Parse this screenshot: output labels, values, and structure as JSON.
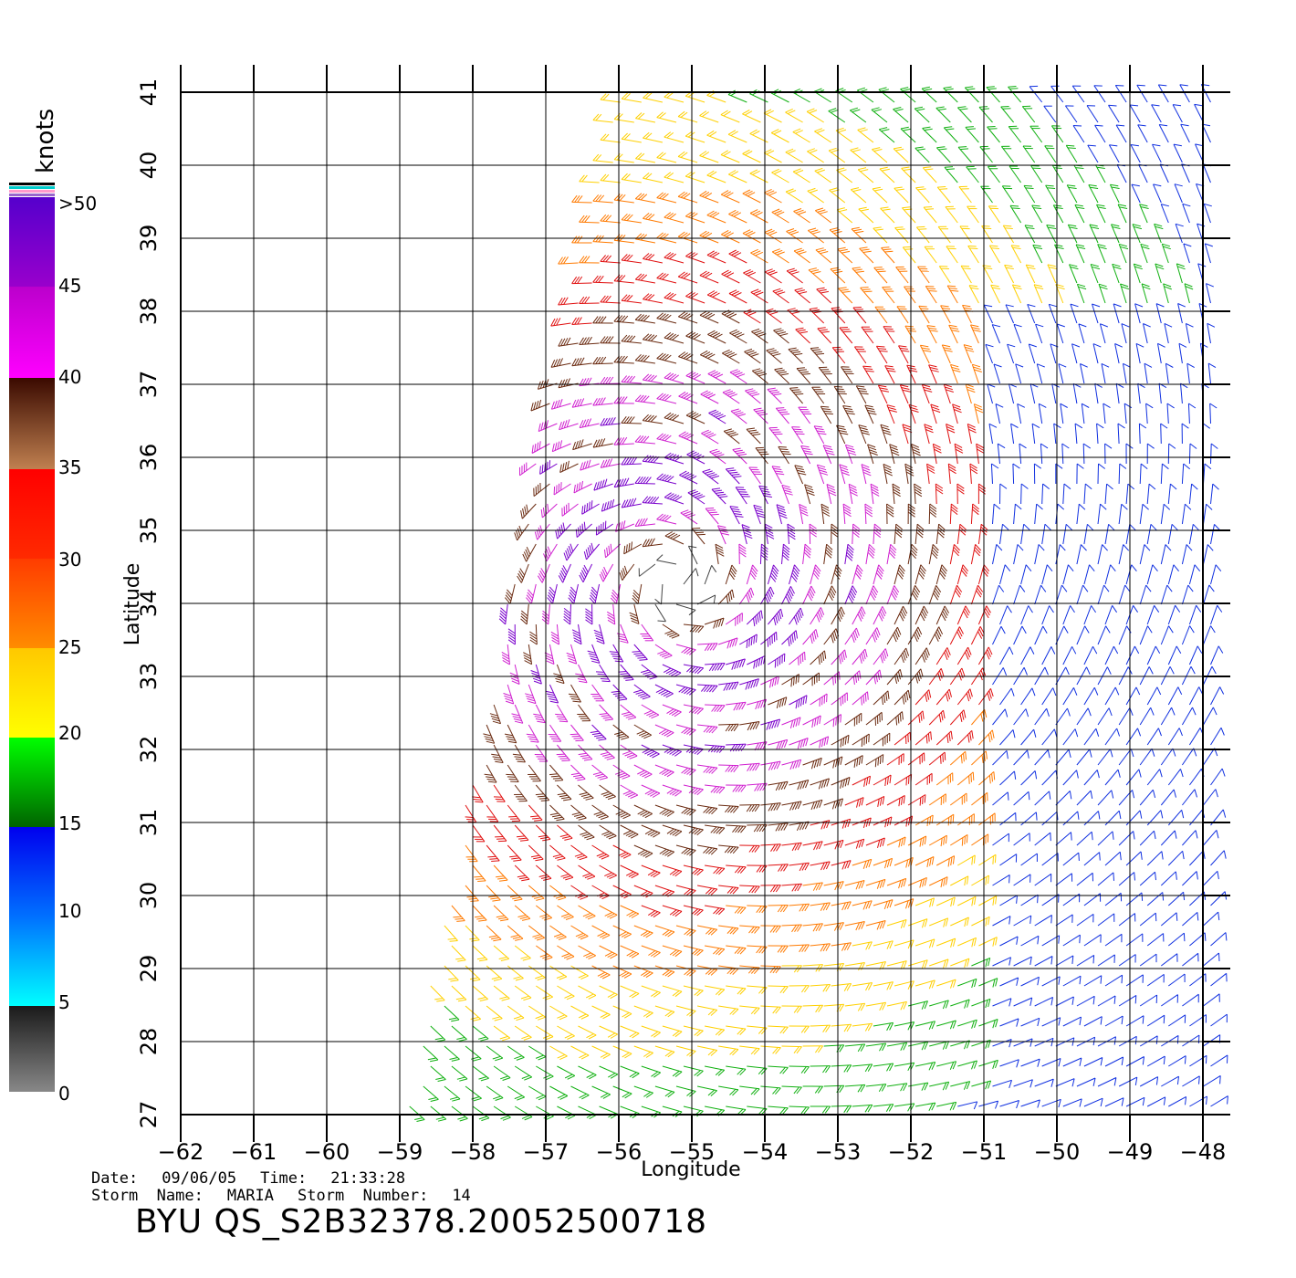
{
  "colorbar": {
    "unit_label": "knots",
    "tick_labels": [
      "0",
      "5",
      "10",
      "15",
      "20",
      "25",
      "30",
      "35",
      "40",
      "45",
      ">50"
    ],
    "colors": {
      "0-5": [
        "#888888",
        "#1a1a1a"
      ],
      "5-10": [
        "#00e5ff",
        "#0070ff"
      ],
      "10-15": [
        "#0070ff",
        "#0000ee"
      ],
      "15-20": [
        "#006400",
        "#00ff00"
      ],
      "20-25": [
        "#ffff00",
        "#ffc800"
      ],
      "25-30": [
        "#ff8c00",
        "#ff3c00"
      ],
      "30-35": [
        "#ff1e00",
        "#ff0000"
      ],
      "35-40": [
        "#b8764a",
        "#3a0a00"
      ],
      "40-45": [
        "#ff00ff",
        "#cc00cc"
      ],
      "45-50": [
        "#9900cc",
        "#5500cc"
      ]
    }
  },
  "map": {
    "xlabel": "Longitude",
    "ylabel": "Latitude",
    "x_ticks": [
      "−62",
      "−61",
      "−60",
      "−59",
      "−58",
      "−57",
      "−56",
      "−55",
      "−54",
      "−53",
      "−52",
      "−51",
      "−50",
      "−49",
      "−48"
    ],
    "y_ticks": [
      "27",
      "28",
      "29",
      "30",
      "31",
      "32",
      "33",
      "34",
      "35",
      "36",
      "37",
      "38",
      "39",
      "40",
      "41"
    ],
    "lon_range": [
      -62,
      -48
    ],
    "lat_range": [
      27,
      41
    ],
    "storm_center": {
      "lon": -55.2,
      "lat": 34.3
    }
  },
  "info": {
    "date_label": "Date:",
    "date": "09/06/05",
    "time_label": "Time:",
    "time": "21:33:28",
    "storm_name_label": "Storm  Name:",
    "storm_name": "MARIA",
    "storm_number_label": "Storm  Number:",
    "storm_number": "14"
  },
  "product_id": "BYU  QS_S2B32378.20052500718"
}
